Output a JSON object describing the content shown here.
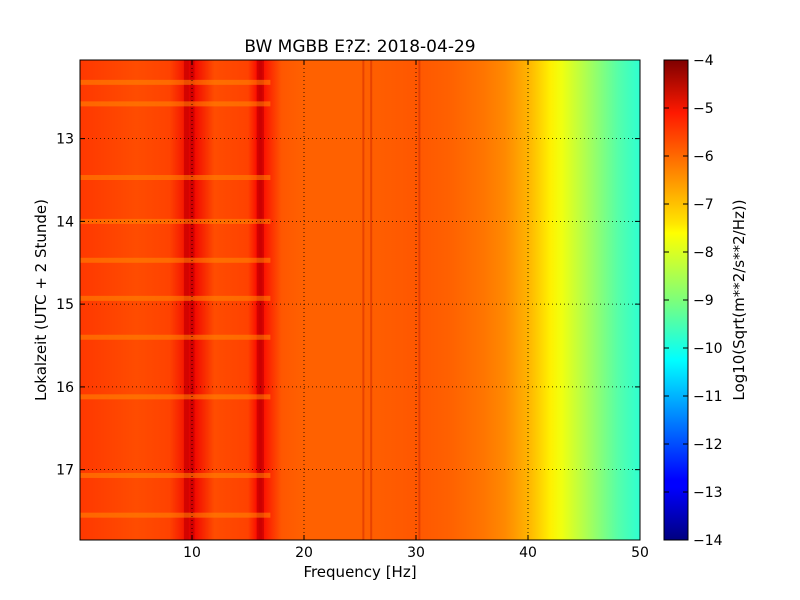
{
  "chart_data": {
    "type": "heatmap",
    "title": "BW MGBB E?Z: 2018-04-29",
    "xlabel": "Frequency [Hz]",
    "ylabel": "Lokalzeit (UTC + 2 Stunde)",
    "xlim": [
      0,
      50
    ],
    "ylim": [
      17.85,
      12.05
    ],
    "x_ticks": [
      {
        "value": 10,
        "label": "10"
      },
      {
        "value": 20,
        "label": "20"
      },
      {
        "value": 30,
        "label": "30"
      },
      {
        "value": 40,
        "label": "40"
      },
      {
        "value": 50,
        "label": "50"
      }
    ],
    "y_ticks": [
      {
        "value": 13,
        "label": "13"
      },
      {
        "value": 14,
        "label": "14"
      },
      {
        "value": 15,
        "label": "15"
      },
      {
        "value": 16,
        "label": "16"
      },
      {
        "value": 17,
        "label": "17"
      }
    ],
    "grid": true,
    "colorbar": {
      "label": "Log10(Sqrt(m**2/s**2/Hz))",
      "range": [
        -14,
        -4
      ],
      "colormap": "jet",
      "ticks": [
        {
          "value": -4,
          "label": "−4"
        },
        {
          "value": -5,
          "label": "−5"
        },
        {
          "value": -6,
          "label": "−6"
        },
        {
          "value": -7,
          "label": "−7"
        },
        {
          "value": -8,
          "label": "−8"
        },
        {
          "value": -9,
          "label": "−9"
        },
        {
          "value": -10,
          "label": "−10"
        },
        {
          "value": -11,
          "label": "−11"
        },
        {
          "value": -12,
          "label": "−12"
        },
        {
          "value": -13,
          "label": "−13"
        },
        {
          "value": -14,
          "label": "−14"
        }
      ]
    },
    "spectrum_profile": {
      "frequency_hz": [
        0,
        5,
        8,
        10,
        12,
        15,
        16,
        18,
        20,
        25,
        30,
        33,
        36,
        38,
        40,
        41,
        42,
        43,
        44,
        45,
        46,
        47,
        48,
        49,
        50
      ],
      "log_amplitude": [
        -5.8,
        -6.0,
        -5.9,
        -5.1,
        -6.0,
        -5.9,
        -5.2,
        -6.1,
        -6.2,
        -6.2,
        -6.1,
        -6.2,
        -6.4,
        -6.6,
        -7.0,
        -7.3,
        -7.6,
        -7.9,
        -8.2,
        -8.5,
        -8.8,
        -9.1,
        -9.4,
        -9.6,
        -9.8
      ]
    },
    "spectral_lines_hz": [
      9.5,
      10,
      16,
      16.2,
      25.3,
      26,
      30.3
    ],
    "time_bands_hours": [
      12.32,
      12.58,
      13.47,
      14.0,
      14.47,
      14.93,
      15.4,
      16.12,
      17.07,
      17.55
    ]
  }
}
